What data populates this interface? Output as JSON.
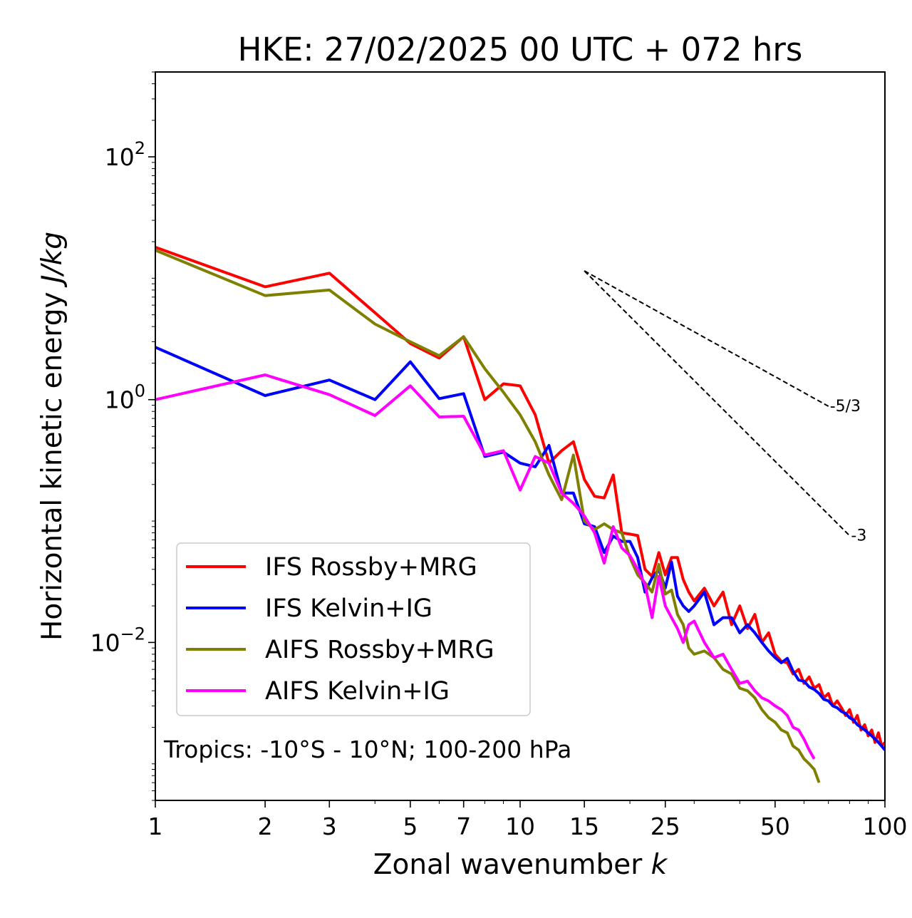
{
  "chart_data": {
    "type": "line",
    "title": "HKE: 27/02/2025 00 UTC + 072 hrs",
    "xlabel": "Zonal wavenumber",
    "xlabel_italic": "k",
    "ylabel": "Horizontal kinetic energy",
    "ylabel_italic": "J/kg",
    "xscale": "log",
    "yscale": "log",
    "xlim": [
      1,
      100
    ],
    "ylim": [
      0.0005,
      500
    ],
    "x_ticks": [
      1,
      2,
      3,
      5,
      7,
      10,
      15,
      25,
      50,
      100
    ],
    "x_tick_labels": [
      "1",
      "2",
      "3",
      "5",
      "7",
      "10",
      "15",
      "25",
      "50",
      "100"
    ],
    "y_ticks": [
      {
        "value": 100,
        "base": "10",
        "exp": "2"
      },
      {
        "value": 1,
        "base": "10",
        "exp": "0"
      },
      {
        "value": 0.01,
        "base": "10",
        "exp": "−2"
      }
    ],
    "legend_position": "lower-left",
    "annotation": "Tropics: -10°S - 10°N; 100-200 hPa",
    "reference_slopes": [
      {
        "label": "-5/3",
        "exponent": -1.6667,
        "x": [
          15,
          70
        ],
        "y_start": 11.5
      },
      {
        "label": "-3",
        "exponent": -3,
        "x": [
          15,
          80
        ],
        "y_start": 11.5
      }
    ],
    "series": [
      {
        "name": "IFS Rossby+MRG",
        "color": "#ff0000",
        "x": [
          1,
          2,
          3,
          4,
          5,
          6,
          7,
          8,
          9,
          10,
          11,
          12,
          13,
          14,
          15,
          16,
          17,
          18,
          19,
          20,
          21,
          22,
          23,
          24,
          25,
          26,
          27,
          28,
          29,
          30,
          32,
          34,
          36,
          38,
          40,
          42,
          44,
          46,
          48,
          50,
          52,
          54,
          56,
          58,
          60,
          62,
          64,
          66,
          68,
          70,
          72,
          74,
          76,
          78,
          80,
          82,
          84,
          86,
          88,
          90,
          92,
          94,
          96,
          98,
          100
        ],
        "y": [
          18,
          8.5,
          11,
          5.2,
          2.9,
          2.2,
          3.3,
          1,
          1.35,
          1.3,
          0.75,
          0.3,
          0.38,
          0.45,
          0.22,
          0.16,
          0.155,
          0.24,
          0.08,
          0.078,
          0.076,
          0.04,
          0.035,
          0.055,
          0.036,
          0.05,
          0.05,
          0.033,
          0.026,
          0.022,
          0.028,
          0.02,
          0.026,
          0.014,
          0.02,
          0.013,
          0.017,
          0.01,
          0.012,
          0.008,
          0.007,
          0.0068,
          0.0055,
          0.006,
          0.0046,
          0.0052,
          0.0042,
          0.0045,
          0.0035,
          0.0038,
          0.003,
          0.0033,
          0.0029,
          0.0025,
          0.0028,
          0.0022,
          0.0025,
          0.0019,
          0.0021,
          0.0017,
          0.0019,
          0.0015,
          0.0018,
          0.0014,
          0.0015
        ]
      },
      {
        "name": "IFS Kelvin+IG",
        "color": "#0000ff",
        "x": [
          1,
          2,
          3,
          4,
          5,
          6,
          7,
          8,
          9,
          10,
          11,
          12,
          13,
          14,
          15,
          16,
          17,
          18,
          19,
          20,
          21,
          22,
          23,
          24,
          25,
          26,
          27,
          28,
          29,
          30,
          32,
          34,
          36,
          38,
          40,
          42,
          44,
          46,
          48,
          50,
          52,
          54,
          56,
          58,
          60,
          62,
          64,
          66,
          68,
          70,
          72,
          74,
          76,
          78,
          80,
          82,
          84,
          86,
          88,
          90,
          92,
          94,
          96,
          98,
          100
        ],
        "y": [
          2.7,
          1.08,
          1.45,
          1.0,
          2.05,
          1.02,
          1.12,
          0.34,
          0.37,
          0.3,
          0.28,
          0.42,
          0.17,
          0.17,
          0.095,
          0.09,
          0.055,
          0.075,
          0.068,
          0.068,
          0.05,
          0.026,
          0.034,
          0.04,
          0.028,
          0.046,
          0.024,
          0.02,
          0.018,
          0.02,
          0.026,
          0.014,
          0.016,
          0.016,
          0.012,
          0.014,
          0.012,
          0.01,
          0.0085,
          0.0075,
          0.0068,
          0.0074,
          0.0058,
          0.0049,
          0.0048,
          0.0043,
          0.0041,
          0.0038,
          0.0034,
          0.0033,
          0.003,
          0.0029,
          0.0027,
          0.0026,
          0.0024,
          0.0023,
          0.0021,
          0.002,
          0.0019,
          0.0018,
          0.0017,
          0.0016,
          0.0015,
          0.0014,
          0.0013
        ]
      },
      {
        "name": "AIFS Rossby+MRG",
        "color": "#808000",
        "x": [
          1,
          2,
          3,
          4,
          5,
          6,
          7,
          8,
          9,
          10,
          11,
          12,
          13,
          14,
          15,
          16,
          17,
          18,
          19,
          20,
          21,
          22,
          23,
          24,
          25,
          26,
          27,
          28,
          29,
          30,
          32,
          34,
          36,
          38,
          40,
          42,
          44,
          46,
          48,
          50,
          52,
          54,
          56,
          58,
          60,
          62,
          64,
          66
        ],
        "y": [
          17,
          7.2,
          8,
          4.2,
          3.0,
          2.3,
          3.3,
          1.8,
          1.15,
          0.75,
          0.45,
          0.24,
          0.15,
          0.35,
          0.1,
          0.085,
          0.095,
          0.085,
          0.08,
          0.05,
          0.036,
          0.031,
          0.026,
          0.044,
          0.025,
          0.027,
          0.017,
          0.014,
          0.009,
          0.008,
          0.0085,
          0.0075,
          0.006,
          0.0055,
          0.0042,
          0.004,
          0.0035,
          0.0028,
          0.0024,
          0.0022,
          0.0019,
          0.0018,
          0.0014,
          0.0013,
          0.0011,
          0.001,
          0.0009,
          0.0007
        ]
      },
      {
        "name": "AIFS Kelvin+IG",
        "color": "#ff00ff",
        "x": [
          1,
          2,
          3,
          4,
          5,
          6,
          7,
          8,
          9,
          10,
          11,
          12,
          13,
          14,
          15,
          16,
          17,
          18,
          19,
          20,
          21,
          22,
          23,
          24,
          25,
          26,
          27,
          28,
          29,
          30,
          32,
          34,
          36,
          38,
          40,
          42,
          44,
          46,
          48,
          50,
          52,
          54,
          56,
          58,
          60,
          62,
          64
        ],
        "y": [
          1.0,
          1.6,
          1.1,
          0.74,
          1.3,
          0.72,
          0.73,
          0.35,
          0.38,
          0.18,
          0.34,
          0.3,
          0.17,
          0.14,
          0.11,
          0.08,
          0.045,
          0.09,
          0.06,
          0.052,
          0.04,
          0.03,
          0.016,
          0.035,
          0.02,
          0.016,
          0.013,
          0.01,
          0.014,
          0.015,
          0.01,
          0.0075,
          0.008,
          0.006,
          0.0046,
          0.0048,
          0.004,
          0.0035,
          0.0033,
          0.003,
          0.0028,
          0.0025,
          0.002,
          0.0019,
          0.0016,
          0.0013,
          0.0011
        ]
      }
    ]
  }
}
